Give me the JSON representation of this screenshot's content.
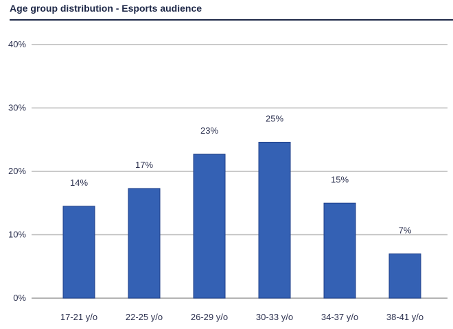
{
  "chart_data": {
    "type": "bar",
    "title": "Age group distribution - Esports audience",
    "categories": [
      "17-21 y/o",
      "22-25 y/o",
      "26-29 y/o",
      "30-33 y/o",
      "34-37 y/o",
      "38-41 y/o"
    ],
    "values": [
      14.5,
      17.3,
      22.7,
      24.6,
      15.0,
      7.0
    ],
    "data_labels": [
      "14%",
      "17%",
      "23%",
      "25%",
      "15%",
      "7%"
    ],
    "y_ticks": [
      0,
      10,
      20,
      30,
      40
    ],
    "y_tick_labels": [
      "0%",
      "10%",
      "20%",
      "30%",
      "40%"
    ],
    "ylim": [
      0,
      40
    ],
    "xlabel": "",
    "ylabel": "",
    "grid": true,
    "bar_color": "#3461b4",
    "bar_border_color": "#1f3f88"
  }
}
